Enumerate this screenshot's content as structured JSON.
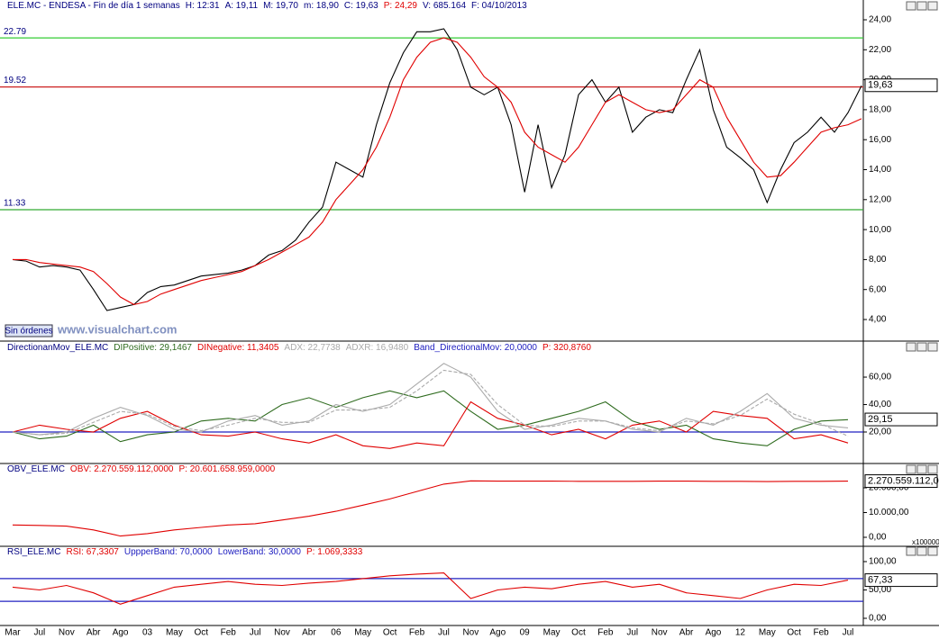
{
  "chart_data": [
    {
      "type": "line",
      "title": "ELE.MC - ENDESA - Fin de día 1 semanas",
      "info": [
        {
          "text": "H: 12:31",
          "color": "#000080"
        },
        {
          "text": "A: 19,11",
          "color": "#000080"
        },
        {
          "text": "M: 19,70",
          "color": "#000080"
        },
        {
          "text": "m: 18,90",
          "color": "#000080"
        },
        {
          "text": "C: 19,63",
          "color": "#000080"
        },
        {
          "text": "P: 24,29",
          "color": "#e00000"
        },
        {
          "text": "V: 685.164",
          "color": "#000080"
        },
        {
          "text": "F: 04/10/2013",
          "color": "#000080"
        }
      ],
      "categories": [
        "Mar",
        null,
        "Jul",
        null,
        "Nov",
        null,
        "Abr",
        null,
        "Ago",
        null,
        "03",
        null,
        "May",
        null,
        "Oct",
        null,
        "Feb",
        null,
        "Jul",
        null,
        "Nov",
        null,
        "Abr",
        null,
        "06",
        null,
        "May",
        null,
        "Oct",
        null,
        "Feb",
        null,
        "Jul",
        null,
        "Nov",
        null,
        "Ago",
        null,
        "09",
        null,
        "May",
        null,
        "Oct",
        null,
        "Feb",
        null,
        "Jul",
        null,
        "Nov",
        null,
        "Abr",
        null,
        "Ago",
        null,
        "12",
        null,
        "May",
        null,
        "Oct",
        null,
        "Feb",
        null,
        "Jul",
        null
      ],
      "series": [
        {
          "color": "#000000",
          "values": [
            8.0,
            7.9,
            7.5,
            7.6,
            7.5,
            7.3,
            6.0,
            4.6,
            4.8,
            5.0,
            5.8,
            6.2,
            6.3,
            6.6,
            6.9,
            7.0,
            7.1,
            7.3,
            7.6,
            8.3,
            8.6,
            9.3,
            10.5,
            11.5,
            14.5,
            14.0,
            13.5,
            17.0,
            19.8,
            21.8,
            23.2,
            23.2,
            23.4,
            22.0,
            19.5,
            19.0,
            19.5,
            17.0,
            12.5,
            17.0,
            12.8,
            15.0,
            19.0,
            20.0,
            18.5,
            19.5,
            16.5,
            17.5,
            18.0,
            17.8,
            20.0,
            22.0,
            18.0,
            15.5,
            14.8,
            14.0,
            11.8,
            14.0,
            15.8,
            16.5,
            17.5,
            16.5,
            17.8,
            19.6
          ]
        },
        {
          "color": "#e00000",
          "values": [
            8.0,
            8.0,
            7.8,
            7.7,
            7.6,
            7.5,
            7.2,
            6.4,
            5.5,
            5.0,
            5.2,
            5.7,
            6.0,
            6.3,
            6.6,
            6.8,
            7.0,
            7.2,
            7.6,
            8.0,
            8.5,
            9.0,
            9.5,
            10.5,
            12.0,
            13.0,
            14.0,
            15.5,
            17.5,
            20.0,
            21.5,
            22.5,
            22.8,
            22.5,
            21.5,
            20.2,
            19.5,
            18.5,
            16.5,
            15.5,
            15.0,
            14.5,
            15.5,
            17.0,
            18.5,
            19.0,
            18.5,
            18.0,
            17.8,
            18.0,
            19.0,
            20.0,
            19.5,
            17.5,
            16.0,
            14.5,
            13.5,
            13.6,
            14.5,
            15.5,
            16.5,
            16.8,
            17.0,
            17.4
          ]
        }
      ],
      "levels": [
        {
          "value": 22.79,
          "color": "#33cc33"
        },
        {
          "value": 19.52,
          "color": "#cc2020"
        },
        {
          "value": 11.33,
          "color": "#33aa33"
        }
      ],
      "label_levels": true,
      "last": {
        "value": 19.63,
        "label": "19,63"
      },
      "ylim": [
        2.62,
        24.42
      ],
      "yticks": [
        {
          "value": 4,
          "label": "4,00"
        },
        {
          "value": 6,
          "label": "6,00"
        },
        {
          "value": 8,
          "label": "8,00"
        },
        {
          "value": 10,
          "label": "10,00"
        },
        {
          "value": 12,
          "label": "12,00"
        },
        {
          "value": 14,
          "label": "14,00"
        },
        {
          "value": 16,
          "label": "16,00"
        },
        {
          "value": 18,
          "label": "18,00"
        },
        {
          "value": 20,
          "label": "20,00"
        },
        {
          "value": 22,
          "label": "22,00"
        },
        {
          "value": 24,
          "label": "24,00"
        }
      ],
      "button": "Sin órdenes",
      "watermark": "www.visualchart.com"
    },
    {
      "type": "line",
      "title": "DirectionanMov_ELE.MC",
      "series": [
        {
          "name": "DIPositive: 29,1467",
          "color": "#2e6b1e",
          "values": [
            20,
            15,
            17,
            25,
            13,
            18,
            20,
            28,
            30,
            28,
            40,
            45,
            38,
            45,
            50,
            45,
            50,
            35,
            22,
            25,
            30,
            35,
            42,
            28,
            22,
            25,
            15,
            12,
            10,
            22,
            28,
            29
          ]
        },
        {
          "name": "DINegative: 11,3405",
          "color": "#e00000",
          "values": [
            20,
            25,
            22,
            20,
            30,
            35,
            25,
            18,
            17,
            20,
            15,
            12,
            18,
            10,
            8,
            12,
            10,
            42,
            30,
            25,
            18,
            22,
            15,
            25,
            28,
            20,
            35,
            32,
            30,
            15,
            18,
            12
          ]
        },
        {
          "name": "ADX: 22,7738",
          "color": "#aaaaaa",
          "values": [
            20,
            18,
            20,
            30,
            38,
            32,
            22,
            20,
            28,
            32,
            25,
            28,
            40,
            35,
            40,
            55,
            70,
            60,
            35,
            22,
            25,
            30,
            28,
            22,
            20,
            30,
            25,
            35,
            48,
            30,
            25,
            23
          ]
        },
        {
          "name": "ADXR: 16,9480",
          "color": "#aaaaaa",
          "dash": true,
          "values": [
            20,
            18,
            19,
            27,
            35,
            33,
            24,
            21,
            25,
            30,
            27,
            27,
            36,
            36,
            38,
            50,
            65,
            62,
            40,
            25,
            24,
            28,
            28,
            23,
            21,
            28,
            26,
            32,
            44,
            33,
            26,
            17
          ]
        }
      ],
      "levels": [
        {
          "name": "Band_DirectionalMov: 20,0000",
          "value": 20,
          "color": "#2020c0"
        }
      ],
      "p": "P: 320,8760",
      "last": {
        "value": 29.15,
        "label": "29,15"
      },
      "ylim": [
        -2.95,
        85.6
      ],
      "yticks": [
        {
          "value": 20,
          "label": "20,00"
        },
        {
          "value": 40,
          "label": "40,00"
        },
        {
          "value": 60,
          "label": "60,00"
        }
      ]
    },
    {
      "type": "line",
      "title": "OBV_ELE.MC",
      "series": [
        {
          "name": "OBV: 2.270.559.112,0000",
          "color": "#e00000",
          "values": [
            5000,
            4800,
            4500,
            3000,
            500,
            1500,
            3000,
            4000,
            5000,
            5500,
            7000,
            8500,
            10500,
            13000,
            15500,
            18500,
            21500,
            22800,
            22700,
            22700,
            22700,
            22600,
            22600,
            22600,
            22700,
            22700,
            22600,
            22600,
            22500,
            22600,
            22600,
            22705.59
          ]
        }
      ],
      "p": "P: 20.601.658.959,0000",
      "last": {
        "value": 22705.59112,
        "label": "2.270.559.112,0"
      },
      "scale_note": "x100000",
      "ylim": [
        -3636,
        29818
      ],
      "yticks": [
        {
          "value": 0,
          "label": "0,00"
        },
        {
          "value": 10000,
          "label": "10.000,00"
        },
        {
          "value": 20000,
          "label": "20.000,00"
        }
      ]
    },
    {
      "type": "line",
      "title": "RSI_ELE.MC",
      "series": [
        {
          "name": "RSI: 67,3307",
          "color": "#e00000",
          "values": [
            55,
            50,
            58,
            45,
            25,
            40,
            55,
            60,
            65,
            60,
            58,
            62,
            65,
            70,
            75,
            78,
            80,
            35,
            50,
            55,
            52,
            60,
            65,
            55,
            60,
            45,
            40,
            35,
            50,
            60,
            58,
            67.3307
          ]
        }
      ],
      "levels": [
        {
          "name": "UppperBand: 70,0000",
          "value": 70,
          "color": "#2020c0"
        },
        {
          "name": "LowerBand: 30,0000",
          "value": 30,
          "color": "#2020c0"
        }
      ],
      "p": "P: 1.069,3333",
      "last": {
        "value": 67.33,
        "label": "67,33"
      },
      "ylim": [
        -12.7,
        127
      ],
      "yticks": [
        {
          "value": 0,
          "label": "0,00"
        },
        {
          "value": 50,
          "label": "50,00"
        },
        {
          "value": 100,
          "label": "100,00"
        }
      ]
    }
  ]
}
